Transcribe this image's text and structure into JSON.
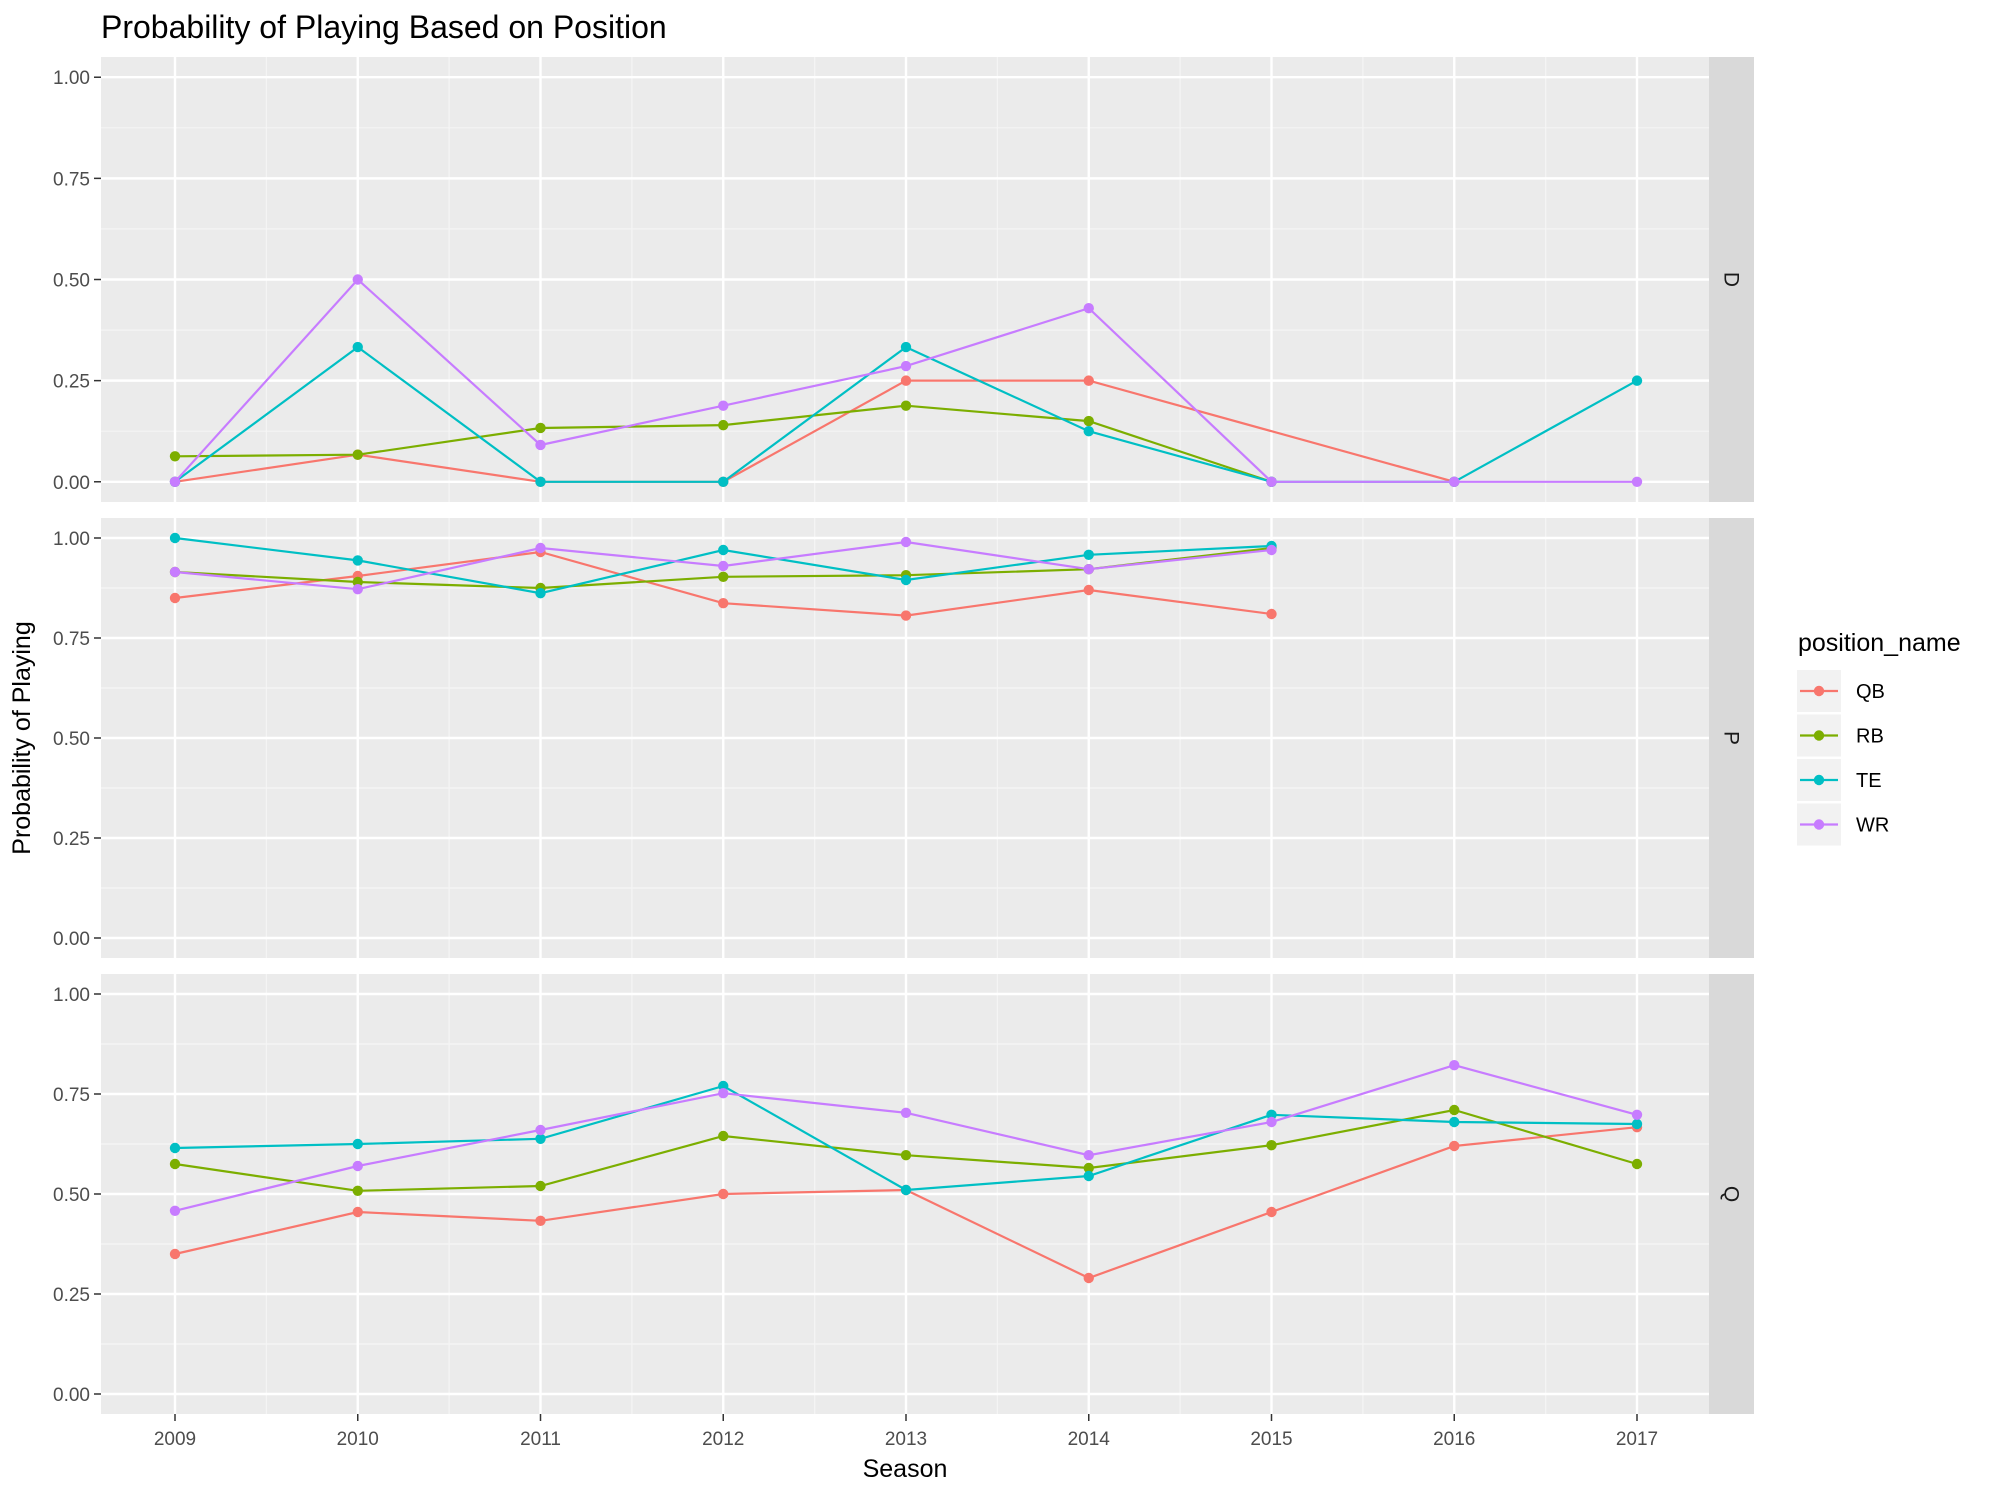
{
  "chart_data": {
    "type": "line",
    "title": "Probability of Playing Based on Position",
    "xlabel": "Season",
    "ylabel": "Probability of Playing",
    "x": [
      2009,
      2010,
      2011,
      2012,
      2013,
      2014,
      2015,
      2016,
      2017
    ],
    "ylim": [
      0,
      1
    ],
    "yticks": [
      "0.00",
      "0.25",
      "0.50",
      "0.75",
      "1.00"
    ],
    "grid": true,
    "legend": {
      "title": "position_name",
      "placement": "right",
      "items": [
        {
          "label": "QB",
          "color": "#F8766D"
        },
        {
          "label": "RB",
          "color": "#7CAE00"
        },
        {
          "label": "TE",
          "color": "#00BFC4"
        },
        {
          "label": "WR",
          "color": "#C77CFF"
        }
      ]
    },
    "facets": [
      {
        "label": "D",
        "series": [
          {
            "name": "QB",
            "values": [
              0.0,
              0.067,
              0.0,
              0.0,
              0.25,
              0.25,
              null,
              0.0,
              null
            ]
          },
          {
            "name": "RB",
            "values": [
              0.063,
              0.067,
              0.133,
              0.14,
              0.188,
              0.15,
              0.0,
              null,
              null
            ]
          },
          {
            "name": "TE",
            "values": [
              0.0,
              0.333,
              0.0,
              0.0,
              0.333,
              0.125,
              0.0,
              0.0,
              0.25
            ]
          },
          {
            "name": "WR",
            "values": [
              0.0,
              0.5,
              0.091,
              0.188,
              0.286,
              0.429,
              0.0,
              0.0,
              0.0
            ]
          }
        ]
      },
      {
        "label": "P",
        "series": [
          {
            "name": "QB",
            "values": [
              0.85,
              0.905,
              0.965,
              0.837,
              0.806,
              0.87,
              0.81,
              null,
              null
            ]
          },
          {
            "name": "RB",
            "values": [
              0.915,
              0.89,
              0.875,
              0.903,
              0.907,
              0.922,
              0.975,
              null,
              null
            ]
          },
          {
            "name": "TE",
            "values": [
              1.0,
              0.944,
              0.862,
              0.97,
              0.895,
              0.958,
              0.98,
              null,
              null
            ]
          },
          {
            "name": "WR",
            "values": [
              0.915,
              0.872,
              0.975,
              0.93,
              0.99,
              0.922,
              0.97,
              null,
              null
            ]
          }
        ]
      },
      {
        "label": "Q",
        "series": [
          {
            "name": "QB",
            "values": [
              0.35,
              0.455,
              0.433,
              0.5,
              0.51,
              0.29,
              0.455,
              0.62,
              0.667
            ]
          },
          {
            "name": "RB",
            "values": [
              0.575,
              0.508,
              0.52,
              0.645,
              0.597,
              0.565,
              0.622,
              0.71,
              0.575
            ]
          },
          {
            "name": "TE",
            "values": [
              0.615,
              0.625,
              0.638,
              0.77,
              0.51,
              0.545,
              0.698,
              0.68,
              0.675
            ]
          },
          {
            "name": "WR",
            "values": [
              0.458,
              0.57,
              0.66,
              0.752,
              0.703,
              0.597,
              0.68,
              0.822,
              0.698
            ]
          }
        ]
      }
    ]
  }
}
